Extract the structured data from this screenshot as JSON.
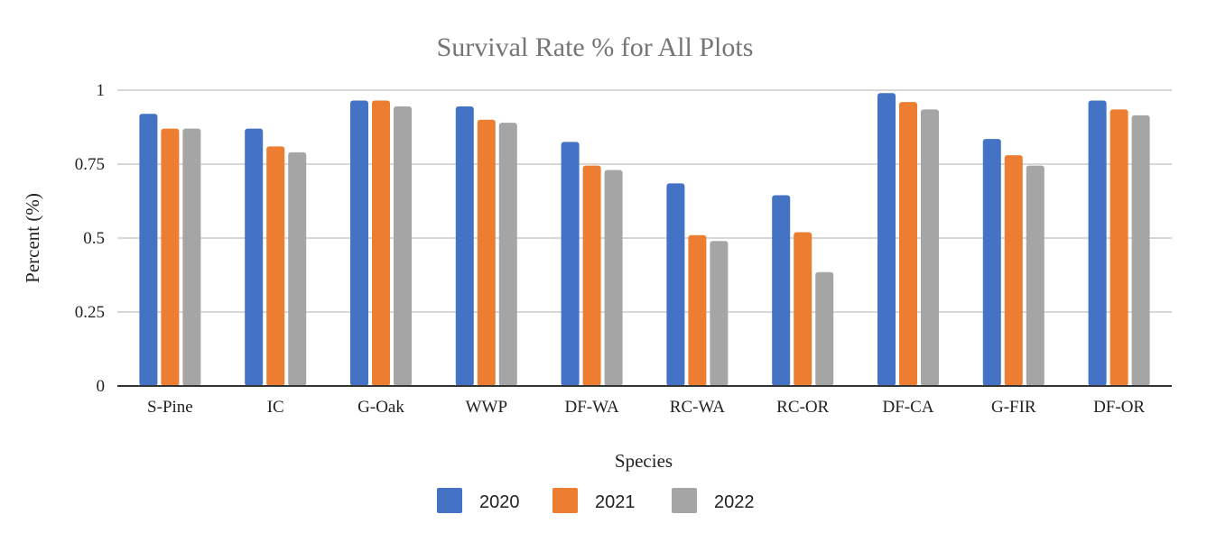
{
  "chart_data": {
    "type": "bar",
    "title": "Survival Rate % for All Plots",
    "xlabel": "Species",
    "ylabel": "Percent (%)",
    "categories": [
      "S-Pine",
      "IC",
      "G-Oak",
      "WWP",
      "DF-WA",
      "RC-WA",
      "RC-OR",
      "DF-CA",
      "G-FIR",
      "DF-OR"
    ],
    "series": [
      {
        "name": "2020",
        "color": "#4472c4",
        "values": [
          0.92,
          0.87,
          0.965,
          0.945,
          0.825,
          0.685,
          0.645,
          0.99,
          0.835,
          0.965
        ]
      },
      {
        "name": "2021",
        "color": "#ed7d31",
        "values": [
          0.87,
          0.81,
          0.965,
          0.9,
          0.745,
          0.51,
          0.52,
          0.96,
          0.78,
          0.935
        ]
      },
      {
        "name": "2022",
        "color": "#a5a5a5",
        "values": [
          0.87,
          0.79,
          0.945,
          0.89,
          0.73,
          0.49,
          0.385,
          0.935,
          0.745,
          0.915
        ]
      }
    ],
    "ylim": [
      0,
      1
    ],
    "yticks": [
      {
        "value": 0,
        "label": "0"
      },
      {
        "value": 0.25,
        "label": "0.25"
      },
      {
        "value": 0.5,
        "label": "0.5"
      },
      {
        "value": 0.75,
        "label": "0.75"
      },
      {
        "value": 1,
        "label": "1"
      }
    ],
    "grid": true,
    "legend_position": "bottom"
  }
}
